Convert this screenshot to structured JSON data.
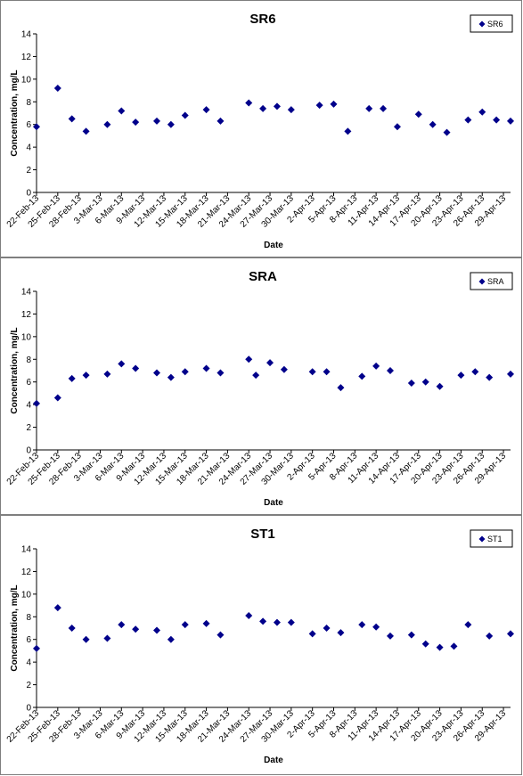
{
  "chart_data": [
    {
      "type": "scatter",
      "title": "SR6",
      "xlabel": "Date",
      "ylabel": "Concentration, mg/L",
      "ylim": [
        0,
        14
      ],
      "yticks": [
        0,
        2,
        4,
        6,
        8,
        10,
        12,
        14
      ],
      "xlim": [
        "22-Feb-13",
        "30-Apr-13"
      ],
      "xticks": [
        "22-Feb-13",
        "25-Feb-13",
        "28-Feb-13",
        "3-Mar-13",
        "6-Mar-13",
        "9-Mar-13",
        "12-Mar-13",
        "15-Mar-13",
        "18-Mar-13",
        "21-Mar-13",
        "24-Mar-13",
        "27-Mar-13",
        "30-Mar-13",
        "2-Apr-13",
        "5-Apr-13",
        "8-Apr-13",
        "11-Apr-13",
        "14-Apr-13",
        "17-Apr-13",
        "20-Apr-13",
        "23-Apr-13",
        "26-Apr-13",
        "29-Apr-13"
      ],
      "grid": false,
      "legend_position": "top-right",
      "series": [
        {
          "name": "SR6",
          "color": "#00008b",
          "marker": "diamond",
          "points": [
            {
              "x": "22-Feb-13",
              "y": 5.8
            },
            {
              "x": "25-Feb-13",
              "y": 9.2
            },
            {
              "x": "27-Feb-13",
              "y": 6.5
            },
            {
              "x": "1-Mar-13",
              "y": 5.4
            },
            {
              "x": "4-Mar-13",
              "y": 6.0
            },
            {
              "x": "6-Mar-13",
              "y": 7.2
            },
            {
              "x": "8-Mar-13",
              "y": 6.2
            },
            {
              "x": "11-Mar-13",
              "y": 6.3
            },
            {
              "x": "13-Mar-13",
              "y": 6.0
            },
            {
              "x": "15-Mar-13",
              "y": 6.8
            },
            {
              "x": "18-Mar-13",
              "y": 7.3
            },
            {
              "x": "20-Mar-13",
              "y": 6.3
            },
            {
              "x": "24-Mar-13",
              "y": 7.9
            },
            {
              "x": "26-Mar-13",
              "y": 7.4
            },
            {
              "x": "28-Mar-13",
              "y": 7.6
            },
            {
              "x": "30-Mar-13",
              "y": 7.3
            },
            {
              "x": "3-Apr-13",
              "y": 7.7
            },
            {
              "x": "5-Apr-13",
              "y": 7.8
            },
            {
              "x": "7-Apr-13",
              "y": 5.4
            },
            {
              "x": "10-Apr-13",
              "y": 7.4
            },
            {
              "x": "12-Apr-13",
              "y": 7.4
            },
            {
              "x": "14-Apr-13",
              "y": 5.8
            },
            {
              "x": "17-Apr-13",
              "y": 6.9
            },
            {
              "x": "19-Apr-13",
              "y": 6.0
            },
            {
              "x": "21-Apr-13",
              "y": 5.3
            },
            {
              "x": "24-Apr-13",
              "y": 6.4
            },
            {
              "x": "26-Apr-13",
              "y": 7.1
            },
            {
              "x": "28-Apr-13",
              "y": 6.4
            },
            {
              "x": "30-Apr-13",
              "y": 6.3
            }
          ]
        }
      ]
    },
    {
      "type": "scatter",
      "title": "SRA",
      "xlabel": "Date",
      "ylabel": "Concentration, mg/L",
      "ylim": [
        0,
        14
      ],
      "yticks": [
        0,
        2,
        4,
        6,
        8,
        10,
        12,
        14
      ],
      "xlim": [
        "22-Feb-13",
        "30-Apr-13"
      ],
      "xticks": [
        "22-Feb-13",
        "25-Feb-13",
        "28-Feb-13",
        "3-Mar-13",
        "6-Mar-13",
        "9-Mar-13",
        "12-Mar-13",
        "15-Mar-13",
        "18-Mar-13",
        "21-Mar-13",
        "24-Mar-13",
        "27-Mar-13",
        "30-Mar-13",
        "2-Apr-13",
        "5-Apr-13",
        "8-Apr-13",
        "11-Apr-13",
        "14-Apr-13",
        "17-Apr-13",
        "20-Apr-13",
        "23-Apr-13",
        "26-Apr-13",
        "29-Apr-13"
      ],
      "grid": false,
      "legend_position": "top-right",
      "series": [
        {
          "name": "SRA",
          "color": "#00008b",
          "marker": "diamond",
          "points": [
            {
              "x": "22-Feb-13",
              "y": 4.1
            },
            {
              "x": "25-Feb-13",
              "y": 4.6
            },
            {
              "x": "27-Feb-13",
              "y": 6.3
            },
            {
              "x": "1-Mar-13",
              "y": 6.6
            },
            {
              "x": "4-Mar-13",
              "y": 6.7
            },
            {
              "x": "6-Mar-13",
              "y": 7.6
            },
            {
              "x": "8-Mar-13",
              "y": 7.2
            },
            {
              "x": "11-Mar-13",
              "y": 6.8
            },
            {
              "x": "13-Mar-13",
              "y": 6.4
            },
            {
              "x": "15-Mar-13",
              "y": 6.9
            },
            {
              "x": "18-Mar-13",
              "y": 7.2
            },
            {
              "x": "20-Mar-13",
              "y": 6.8
            },
            {
              "x": "24-Mar-13",
              "y": 8.0
            },
            {
              "x": "25-Mar-13",
              "y": 6.6
            },
            {
              "x": "27-Mar-13",
              "y": 7.7
            },
            {
              "x": "29-Mar-13",
              "y": 7.1
            },
            {
              "x": "2-Apr-13",
              "y": 6.9
            },
            {
              "x": "4-Apr-13",
              "y": 6.9
            },
            {
              "x": "6-Apr-13",
              "y": 5.5
            },
            {
              "x": "9-Apr-13",
              "y": 6.5
            },
            {
              "x": "11-Apr-13",
              "y": 7.4
            },
            {
              "x": "13-Apr-13",
              "y": 7.0
            },
            {
              "x": "16-Apr-13",
              "y": 5.9
            },
            {
              "x": "18-Apr-13",
              "y": 6.0
            },
            {
              "x": "20-Apr-13",
              "y": 5.6
            },
            {
              "x": "23-Apr-13",
              "y": 6.6
            },
            {
              "x": "25-Apr-13",
              "y": 6.9
            },
            {
              "x": "27-Apr-13",
              "y": 6.4
            },
            {
              "x": "30-Apr-13",
              "y": 6.7
            }
          ]
        }
      ]
    },
    {
      "type": "scatter",
      "title": "ST1",
      "xlabel": "Date",
      "ylabel": "Concentration, mg/L",
      "ylim": [
        0,
        14
      ],
      "yticks": [
        0,
        2,
        4,
        6,
        8,
        10,
        12,
        14
      ],
      "xlim": [
        "22-Feb-13",
        "30-Apr-13"
      ],
      "xticks": [
        "22-Feb-13",
        "25-Feb-13",
        "28-Feb-13",
        "3-Mar-13",
        "6-Mar-13",
        "9-Mar-13",
        "12-Mar-13",
        "15-Mar-13",
        "18-Mar-13",
        "21-Mar-13",
        "24-Mar-13",
        "27-Mar-13",
        "30-Mar-13",
        "2-Apr-13",
        "5-Apr-13",
        "8-Apr-13",
        "11-Apr-13",
        "14-Apr-13",
        "17-Apr-13",
        "20-Apr-13",
        "23-Apr-13",
        "26-Apr-13",
        "29-Apr-13"
      ],
      "grid": false,
      "legend_position": "top-right",
      "series": [
        {
          "name": "ST1",
          "color": "#00008b",
          "marker": "diamond",
          "points": [
            {
              "x": "22-Feb-13",
              "y": 5.2
            },
            {
              "x": "25-Feb-13",
              "y": 8.8
            },
            {
              "x": "27-Feb-13",
              "y": 7.0
            },
            {
              "x": "1-Mar-13",
              "y": 6.0
            },
            {
              "x": "4-Mar-13",
              "y": 6.1
            },
            {
              "x": "6-Mar-13",
              "y": 7.3
            },
            {
              "x": "8-Mar-13",
              "y": 6.9
            },
            {
              "x": "11-Mar-13",
              "y": 6.8
            },
            {
              "x": "13-Mar-13",
              "y": 6.0
            },
            {
              "x": "15-Mar-13",
              "y": 7.3
            },
            {
              "x": "18-Mar-13",
              "y": 7.4
            },
            {
              "x": "20-Mar-13",
              "y": 6.4
            },
            {
              "x": "24-Mar-13",
              "y": 8.1
            },
            {
              "x": "26-Mar-13",
              "y": 7.6
            },
            {
              "x": "28-Mar-13",
              "y": 7.5
            },
            {
              "x": "30-Mar-13",
              "y": 7.5
            },
            {
              "x": "2-Apr-13",
              "y": 6.5
            },
            {
              "x": "4-Apr-13",
              "y": 7.0
            },
            {
              "x": "6-Apr-13",
              "y": 6.6
            },
            {
              "x": "9-Apr-13",
              "y": 7.3
            },
            {
              "x": "11-Apr-13",
              "y": 7.1
            },
            {
              "x": "13-Apr-13",
              "y": 6.3
            },
            {
              "x": "16-Apr-13",
              "y": 6.4
            },
            {
              "x": "18-Apr-13",
              "y": 5.6
            },
            {
              "x": "20-Apr-13",
              "y": 5.3
            },
            {
              "x": "22-Apr-13",
              "y": 5.4
            },
            {
              "x": "24-Apr-13",
              "y": 7.3
            },
            {
              "x": "27-Apr-13",
              "y": 6.3
            },
            {
              "x": "30-Apr-13",
              "y": 6.5
            }
          ]
        }
      ]
    }
  ]
}
